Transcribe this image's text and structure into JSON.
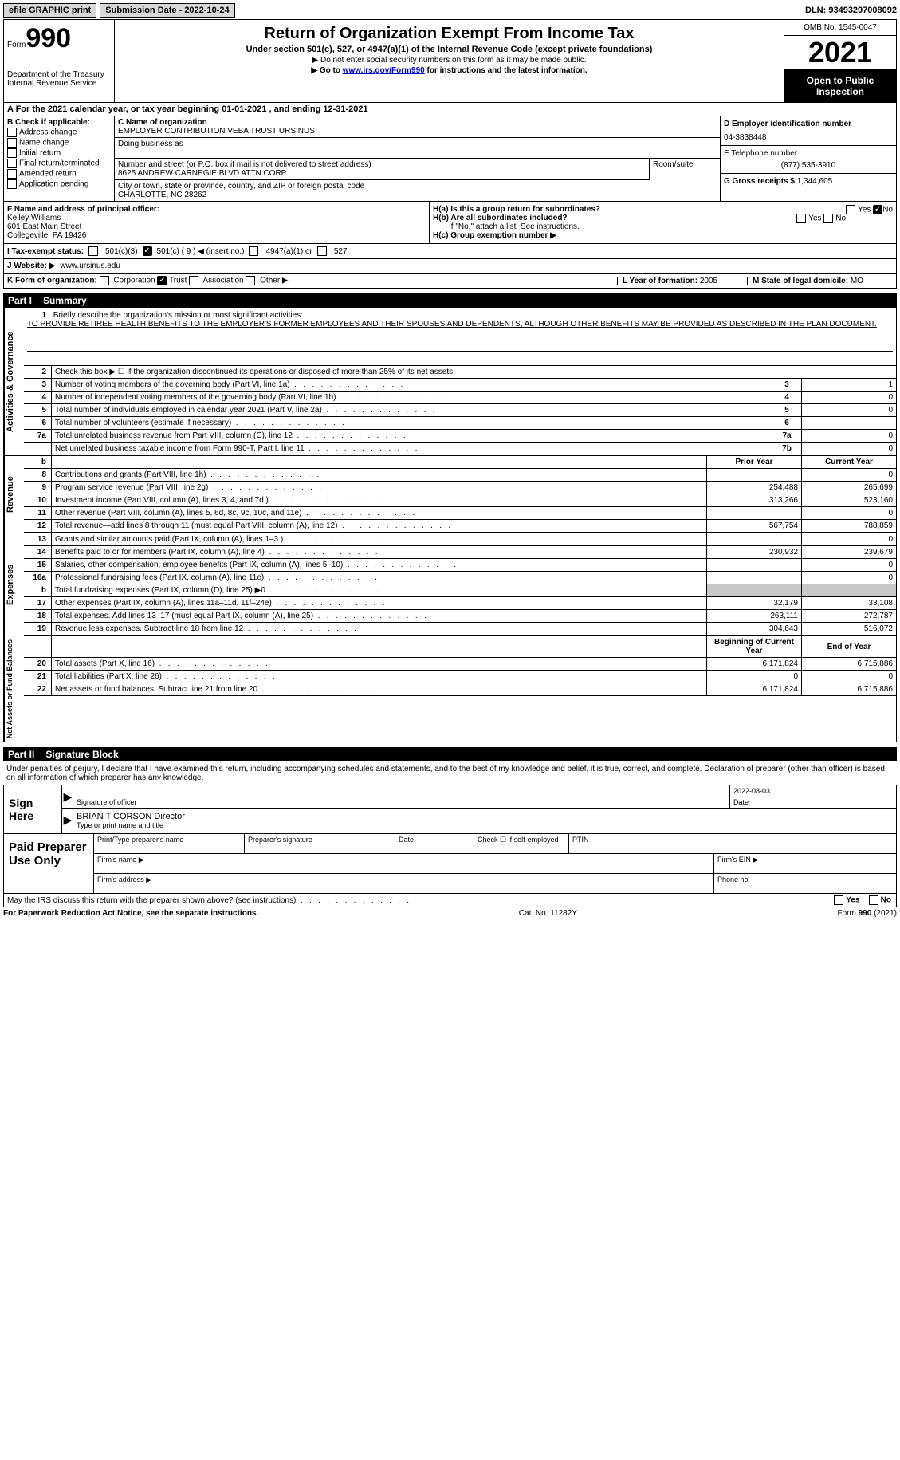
{
  "topbar": {
    "efile": "efile GRAPHIC print",
    "submission_label": "Submission Date - 2022-10-24",
    "dln": "DLN: 93493297008092"
  },
  "header": {
    "form_label": "Form",
    "form_number": "990",
    "dept": "Department of the Treasury\nInternal Revenue Service",
    "title": "Return of Organization Exempt From Income Tax",
    "subtitle": "Under section 501(c), 527, or 4947(a)(1) of the Internal Revenue Code (except private foundations)",
    "note1": "Do not enter social security numbers on this form as it may be made public.",
    "note2_pre": "Go to ",
    "note2_link": "www.irs.gov/Form990",
    "note2_post": " for instructions and the latest information.",
    "omb": "OMB No. 1545-0047",
    "year": "2021",
    "open": "Open to Public Inspection"
  },
  "lineA": "A For the 2021 calendar year, or tax year beginning 01-01-2021   , and ending 12-31-2021",
  "colB": {
    "label": "B Check if applicable:",
    "opts": [
      "Address change",
      "Name change",
      "Initial return",
      "Final return/terminated",
      "Amended return",
      "Application pending"
    ]
  },
  "colC": {
    "name_label": "C Name of organization",
    "name": "EMPLOYER CONTRIBUTION VEBA TRUST URSINUS",
    "dba_label": "Doing business as",
    "addr_label": "Number and street (or P.O. box if mail is not delivered to street address)",
    "addr": "8625 ANDREW CARNEGIE BLVD ATTN CORP",
    "room_label": "Room/suite",
    "city_label": "City or town, state or province, country, and ZIP or foreign postal code",
    "city": "CHARLOTTE, NC  28262"
  },
  "colD": {
    "ein_label": "D Employer identification number",
    "ein": "04-3838448",
    "phone_label": "E Telephone number",
    "phone": "(877) 535-3910",
    "gross_label": "G Gross receipts $",
    "gross": "1,344,605"
  },
  "fh": {
    "f_label": "F  Name and address of principal officer:",
    "f_name": "Kelley Williams",
    "f_addr1": "601 East Main Street",
    "f_addr2": "Collegeville, PA  19426",
    "ha_label": "H(a)  Is this a group return for subordinates?",
    "ha_yes": "Yes",
    "ha_no": "No",
    "hb_label": "H(b)  Are all subordinates included?",
    "hb_note": "If \"No,\" attach a list. See instructions.",
    "hc_label": "H(c)  Group exemption number ▶",
    "i_label": "I   Tax-exempt status:",
    "i_501c3": "501(c)(3)",
    "i_501c": "501(c) ( 9 ) ◀ (insert no.)",
    "i_4947": "4947(a)(1) or",
    "i_527": "527",
    "j_label": "J   Website: ▶",
    "j_value": "  www.ursinus.edu"
  },
  "kl": {
    "k_label": "K Form of organization:",
    "k_opts": [
      "Corporation",
      "Trust",
      "Association",
      "Other ▶"
    ],
    "k_checked_index": 1,
    "l_label": "L Year of formation:",
    "l_value": "2005",
    "m_label": "M State of legal domicile:",
    "m_value": "MO"
  },
  "part1": {
    "title": "Part I",
    "subtitle": "Summary",
    "sections": {
      "activities": "Activities & Governance",
      "revenue": "Revenue",
      "expenses": "Expenses",
      "net": "Net Assets or Fund Balances"
    },
    "line1_label": "Briefly describe the organization's mission or most significant activities:",
    "line1_text": "TO PROVIDE RETIREE HEALTH BENEFITS TO THE EMPLOYER'S FORMER EMPLOYEES AND THEIR SPOUSES AND DEPENDENTS, ALTHOUGH OTHER BENEFITS MAY BE PROVIDED AS DESCRIBED IN THE PLAN DOCUMENT.",
    "line2": "Check this box ▶ ☐  if the organization discontinued its operations or disposed of more than 25% of its net assets.",
    "rows_top": [
      {
        "n": "3",
        "label": "Number of voting members of the governing body (Part VI, line 1a)",
        "box": "3",
        "val": "1"
      },
      {
        "n": "4",
        "label": "Number of independent voting members of the governing body (Part VI, line 1b)",
        "box": "4",
        "val": "0"
      },
      {
        "n": "5",
        "label": "Total number of individuals employed in calendar year 2021 (Part V, line 2a)",
        "box": "5",
        "val": "0"
      },
      {
        "n": "6",
        "label": "Total number of volunteers (estimate if necessary)",
        "box": "6",
        "val": ""
      },
      {
        "n": "7a",
        "label": "Total unrelated business revenue from Part VIII, column (C), line 12",
        "box": "7a",
        "val": "0"
      },
      {
        "n": "",
        "label": "Net unrelated business taxable income from Form 990-T, Part I, line 11",
        "box": "7b",
        "val": "0"
      }
    ],
    "col_headers": {
      "prior": "Prior Year",
      "current": "Current Year",
      "boy": "Beginning of Current Year",
      "eoy": "End of Year"
    },
    "revenue_rows": [
      {
        "n": "8",
        "label": "Contributions and grants (Part VIII, line 1h)",
        "prior": "",
        "current": "0"
      },
      {
        "n": "9",
        "label": "Program service revenue (Part VIII, line 2g)",
        "prior": "254,488",
        "current": "265,699"
      },
      {
        "n": "10",
        "label": "Investment income (Part VIII, column (A), lines 3, 4, and 7d )",
        "prior": "313,266",
        "current": "523,160"
      },
      {
        "n": "11",
        "label": "Other revenue (Part VIII, column (A), lines 5, 6d, 8c, 9c, 10c, and 11e)",
        "prior": "",
        "current": "0"
      },
      {
        "n": "12",
        "label": "Total revenue—add lines 8 through 11 (must equal Part VIII, column (A), line 12)",
        "prior": "567,754",
        "current": "788,859"
      }
    ],
    "expense_rows": [
      {
        "n": "13",
        "label": "Grants and similar amounts paid (Part IX, column (A), lines 1–3 )",
        "prior": "",
        "current": "0"
      },
      {
        "n": "14",
        "label": "Benefits paid to or for members (Part IX, column (A), line 4)",
        "prior": "230,932",
        "current": "239,679"
      },
      {
        "n": "15",
        "label": "Salaries, other compensation, employee benefits (Part IX, column (A), lines 5–10)",
        "prior": "",
        "current": "0"
      },
      {
        "n": "16a",
        "label": "Professional fundraising fees (Part IX, column (A), line 11e)",
        "prior": "",
        "current": "0"
      },
      {
        "n": "b",
        "label": "Total fundraising expenses (Part IX, column (D), line 25) ▶0",
        "prior": "SHADE",
        "current": "SHADE"
      },
      {
        "n": "17",
        "label": "Other expenses (Part IX, column (A), lines 11a–11d, 11f–24e)",
        "prior": "32,179",
        "current": "33,108"
      },
      {
        "n": "18",
        "label": "Total expenses. Add lines 13–17 (must equal Part IX, column (A), line 25)",
        "prior": "263,111",
        "current": "272,787"
      },
      {
        "n": "19",
        "label": "Revenue less expenses. Subtract line 18 from line 12",
        "prior": "304,643",
        "current": "516,072"
      }
    ],
    "net_rows": [
      {
        "n": "20",
        "label": "Total assets (Part X, line 16)",
        "prior": "6,171,824",
        "current": "6,715,886"
      },
      {
        "n": "21",
        "label": "Total liabilities (Part X, line 26)",
        "prior": "0",
        "current": "0"
      },
      {
        "n": "22",
        "label": "Net assets or fund balances. Subtract line 21 from line 20",
        "prior": "6,171,824",
        "current": "6,715,886"
      }
    ]
  },
  "part2": {
    "title": "Part II",
    "subtitle": "Signature Block",
    "perjury": "Under penalties of perjury, I declare that I have examined this return, including accompanying schedules and statements, and to the best of my knowledge and belief, it is true, correct, and complete. Declaration of preparer (other than officer) is based on all information of which preparer has any knowledge.",
    "sign_here": "Sign Here",
    "sig_officer": "Signature of officer",
    "sig_date_label": "Date",
    "sig_date": "2022-08-03",
    "name_title": "BRIAN T CORSON  Director",
    "name_title_label": "Type or print name and title",
    "paid": "Paid Preparer Use Only",
    "p_name": "Print/Type preparer's name",
    "p_sig": "Preparer's signature",
    "p_date": "Date",
    "p_check": "Check ☐ if self-employed",
    "p_ptin": "PTIN",
    "p_firm": "Firm's name   ▶",
    "p_ein": "Firm's EIN ▶",
    "p_addr": "Firm's address ▶",
    "p_phone": "Phone no.",
    "discuss": "May the IRS discuss this return with the preparer shown above? (see instructions)",
    "yes": "Yes",
    "no": "No"
  },
  "footer": {
    "pra": "For Paperwork Reduction Act Notice, see the separate instructions.",
    "cat": "Cat. No. 11282Y",
    "form": "Form 990 (2021)"
  }
}
